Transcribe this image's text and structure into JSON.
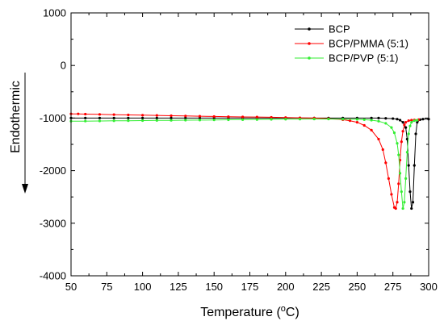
{
  "chart_data": {
    "type": "line",
    "xlabel": "Temperature (°C)",
    "xlabel_parts": {
      "main": "Temperature (",
      "sup": "o",
      "unit": "C)"
    },
    "ylabel": "Endothermic",
    "xlim": [
      50,
      300
    ],
    "ylim": [
      -4000,
      1000
    ],
    "xticks": [
      50,
      75,
      100,
      125,
      150,
      175,
      200,
      225,
      250,
      275,
      300
    ],
    "yticks": [
      -4000,
      -3000,
      -2000,
      -1000,
      0,
      1000
    ],
    "legend_position": "top-right",
    "series": [
      {
        "name": "BCP",
        "color": "#000000",
        "x": [
          50,
          60,
          70,
          80,
          90,
          100,
          110,
          120,
          130,
          140,
          150,
          160,
          170,
          180,
          190,
          200,
          210,
          220,
          230,
          240,
          250,
          260,
          265,
          270,
          275,
          278,
          280,
          282,
          284,
          285,
          286,
          287,
          288,
          289,
          290,
          291,
          292,
          294,
          296,
          300
        ],
        "y": [
          -1000,
          -1000,
          -1000,
          -1000,
          -1000,
          -1000,
          -1000,
          -1000,
          -1000,
          -1000,
          -1000,
          -1000,
          -1000,
          -1000,
          -1000,
          -1000,
          -1000,
          -1000,
          -1000,
          -1000,
          -1000,
          -1000,
          -1000,
          -1005,
          -1010,
          -1020,
          -1040,
          -1080,
          -1180,
          -1400,
          -1900,
          -2400,
          -2720,
          -2600,
          -1900,
          -1300,
          -1080,
          -1030,
          -1020,
          -1020
        ]
      },
      {
        "name": "BCP/PMMA (5:1)",
        "color": "#ff0000",
        "x": [
          50,
          55,
          60,
          70,
          80,
          90,
          100,
          110,
          120,
          130,
          140,
          150,
          160,
          170,
          180,
          190,
          200,
          210,
          220,
          230,
          240,
          245,
          250,
          255,
          260,
          265,
          268,
          270,
          272,
          274,
          276,
          277,
          278,
          279,
          280,
          281,
          282,
          283,
          284,
          286,
          288,
          290,
          293
        ],
        "y": [
          -920,
          -920,
          -925,
          -930,
          -935,
          -940,
          -945,
          -950,
          -955,
          -960,
          -965,
          -970,
          -975,
          -978,
          -980,
          -985,
          -990,
          -995,
          -1000,
          -1010,
          -1030,
          -1050,
          -1080,
          -1140,
          -1230,
          -1400,
          -1600,
          -1850,
          -2150,
          -2450,
          -2700,
          -2720,
          -2600,
          -2250,
          -1800,
          -1450,
          -1250,
          -1130,
          -1080,
          -1050,
          -1040,
          -1035,
          -1030
        ]
      },
      {
        "name": "BCP/PVP (5:1)",
        "color": "#33ee33",
        "x": [
          50,
          60,
          70,
          80,
          90,
          100,
          110,
          120,
          130,
          140,
          150,
          160,
          170,
          180,
          190,
          200,
          210,
          220,
          230,
          240,
          250,
          255,
          260,
          265,
          270,
          274,
          276,
          278,
          279,
          280,
          281,
          282,
          283,
          284,
          285,
          286,
          287,
          288,
          290,
          292
        ],
        "y": [
          -1060,
          -1058,
          -1055,
          -1052,
          -1050,
          -1048,
          -1045,
          -1043,
          -1040,
          -1038,
          -1035,
          -1032,
          -1030,
          -1028,
          -1025,
          -1022,
          -1020,
          -1018,
          -1018,
          -1020,
          -1025,
          -1030,
          -1040,
          -1060,
          -1100,
          -1180,
          -1280,
          -1480,
          -1700,
          -2050,
          -2400,
          -2720,
          -2600,
          -2150,
          -1650,
          -1300,
          -1150,
          -1080,
          -1050,
          -1040
        ]
      }
    ]
  }
}
